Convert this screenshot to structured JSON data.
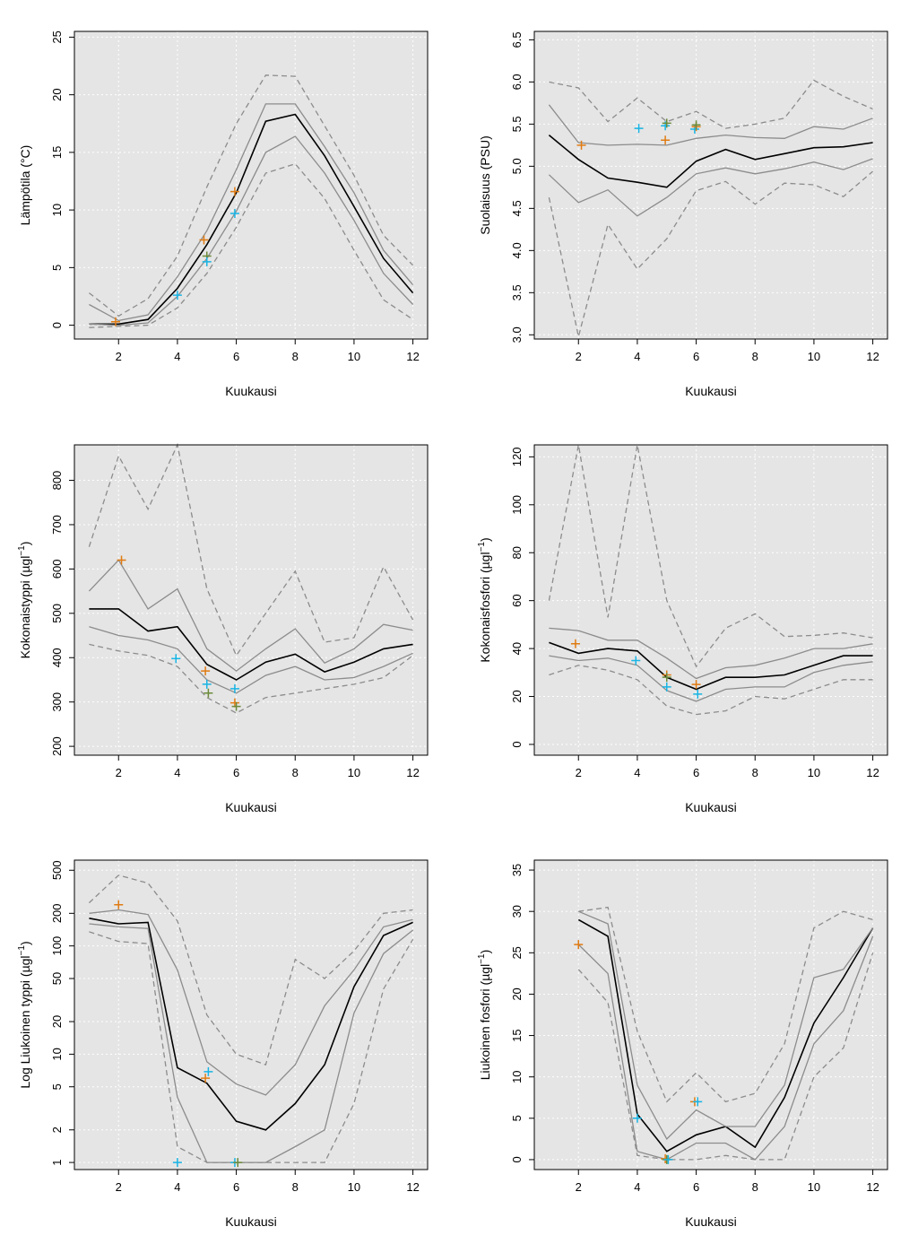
{
  "figure": {
    "xlabel": "Kuukausi",
    "colors": {
      "panel_background": "#e5e5e5",
      "grid": "#ffffff",
      "median_line": "#000000",
      "quartile_line": "#8c8c8c",
      "extreme_line": "#8c8c8c",
      "obs_orange": "#e07b12",
      "obs_cyan": "#18b4e4",
      "obs_green": "#6b8a3a"
    }
  },
  "chart_data": [
    {
      "type": "line",
      "ylabel": "Lämpötila (°C)",
      "ylabel_superscript": "",
      "xlim": [
        0.5,
        12.5
      ],
      "ylim": [
        -1.2,
        25.5
      ],
      "log_y": false,
      "xticks": [
        2,
        4,
        6,
        8,
        10,
        12
      ],
      "yticks": [
        0,
        5,
        10,
        15,
        20,
        25
      ],
      "x": [
        1,
        2,
        3,
        4,
        5,
        6,
        7,
        8,
        9,
        10,
        11,
        12
      ],
      "series": [
        {
          "role": "median",
          "values": [
            0.1,
            0.1,
            0.5,
            3.2,
            7,
            11.5,
            17.7,
            18.3,
            14.7,
            10.3,
            5.8,
            2.8
          ]
        },
        {
          "role": "quartile",
          "values": [
            1.8,
            0.4,
            0.9,
            4.2,
            8.2,
            13.5,
            19.2,
            19.2,
            15.5,
            11.5,
            6.5,
            3.5
          ]
        },
        {
          "role": "quartile",
          "values": [
            0.1,
            0.0,
            0.2,
            2.5,
            5.8,
            9.9,
            15.0,
            16.4,
            13.2,
            9.1,
            4.5,
            1.8
          ]
        },
        {
          "role": "extreme",
          "values": [
            2.8,
            0.8,
            2.3,
            6.0,
            12.0,
            17.5,
            21.7,
            21.6,
            17.3,
            13.0,
            7.8,
            5.2
          ]
        },
        {
          "role": "extreme",
          "values": [
            -0.2,
            -0.1,
            0.0,
            1.5,
            4.5,
            8.5,
            13.2,
            14.0,
            11.0,
            6.5,
            2.2,
            0.5
          ]
        }
      ],
      "points": [
        {
          "x": 1.9,
          "y": 0.3,
          "color": "obs_orange"
        },
        {
          "x": 4.9,
          "y": 7.4,
          "color": "obs_orange"
        },
        {
          "x": 5.0,
          "y": 6.0,
          "color": "obs_green"
        },
        {
          "x": 5.0,
          "y": 5.5,
          "color": "obs_cyan"
        },
        {
          "x": 5.95,
          "y": 11.6,
          "color": "obs_orange"
        },
        {
          "x": 5.95,
          "y": 9.7,
          "color": "obs_cyan"
        },
        {
          "x": 4.0,
          "y": 2.6,
          "color": "obs_cyan"
        }
      ]
    },
    {
      "type": "line",
      "ylabel": "Suolaisuus (PSU)",
      "ylabel_superscript": "",
      "xlim": [
        0.5,
        12.5
      ],
      "ylim": [
        2.95,
        6.6
      ],
      "log_y": false,
      "xticks": [
        2,
        4,
        6,
        8,
        10,
        12
      ],
      "yticks": [
        3.0,
        3.5,
        4.0,
        4.5,
        5.0,
        5.5,
        6.0,
        6.5
      ],
      "x": [
        1,
        2,
        3,
        4,
        5,
        6,
        7,
        8,
        9,
        10,
        11,
        12
      ],
      "series": [
        {
          "role": "median",
          "values": [
            5.37,
            5.08,
            4.86,
            4.81,
            4.75,
            5.06,
            5.2,
            5.08,
            5.15,
            5.22,
            5.23,
            5.28
          ]
        },
        {
          "role": "quartile",
          "values": [
            5.73,
            5.28,
            5.25,
            5.26,
            5.25,
            5.33,
            5.37,
            5.34,
            5.33,
            5.47,
            5.44,
            5.57
          ]
        },
        {
          "role": "quartile",
          "values": [
            4.9,
            4.57,
            4.72,
            4.41,
            4.63,
            4.91,
            4.98,
            4.91,
            4.97,
            5.05,
            4.96,
            5.09
          ]
        },
        {
          "role": "extreme",
          "values": [
            6.0,
            5.93,
            5.53,
            5.81,
            5.53,
            5.65,
            5.45,
            5.5,
            5.57,
            6.02,
            5.83,
            5.68
          ]
        },
        {
          "role": "extreme",
          "values": [
            4.63,
            2.98,
            4.31,
            3.78,
            4.14,
            4.71,
            4.82,
            4.55,
            4.8,
            4.78,
            4.64,
            4.94
          ]
        }
      ],
      "points": [
        {
          "x": 2.1,
          "y": 5.25,
          "color": "obs_orange"
        },
        {
          "x": 4.05,
          "y": 5.45,
          "color": "obs_cyan"
        },
        {
          "x": 4.95,
          "y": 5.31,
          "color": "obs_orange"
        },
        {
          "x": 4.95,
          "y": 5.48,
          "color": "obs_cyan"
        },
        {
          "x": 5.0,
          "y": 5.51,
          "color": "obs_green"
        },
        {
          "x": 5.95,
          "y": 5.44,
          "color": "obs_cyan"
        },
        {
          "x": 6.0,
          "y": 5.47,
          "color": "obs_orange"
        },
        {
          "x": 6.0,
          "y": 5.49,
          "color": "obs_green"
        }
      ]
    },
    {
      "type": "line",
      "ylabel": "Kokonaistyppi (µgl",
      "ylabel_superscript": "−1",
      "ylabel_suffix": ")",
      "xlim": [
        0.5,
        12.5
      ],
      "ylim": [
        180,
        880
      ],
      "log_y": false,
      "xticks": [
        2,
        4,
        6,
        8,
        10,
        12
      ],
      "yticks": [
        200,
        300,
        400,
        500,
        600,
        700,
        800
      ],
      "x": [
        1,
        2,
        3,
        4,
        5,
        6,
        7,
        8,
        9,
        10,
        11,
        12
      ],
      "series": [
        {
          "role": "median",
          "values": [
            510,
            510,
            460,
            470,
            385,
            350,
            390,
            408,
            368,
            390,
            420,
            430
          ]
        },
        {
          "role": "quartile",
          "values": [
            550,
            620,
            510,
            555,
            420,
            370,
            420,
            465,
            388,
            420,
            475,
            462
          ]
        },
        {
          "role": "quartile",
          "values": [
            470,
            450,
            440,
            420,
            350,
            320,
            360,
            380,
            350,
            355,
            380,
            410
          ]
        },
        {
          "role": "extreme",
          "values": [
            650,
            855,
            735,
            880,
            555,
            405,
            500,
            595,
            435,
            445,
            605,
            485
          ]
        },
        {
          "role": "extreme",
          "values": [
            430,
            415,
            405,
            380,
            310,
            275,
            310,
            320,
            330,
            340,
            355,
            405
          ]
        }
      ],
      "points": [
        {
          "x": 2.1,
          "y": 620,
          "color": "obs_orange"
        },
        {
          "x": 3.95,
          "y": 398,
          "color": "obs_cyan"
        },
        {
          "x": 4.95,
          "y": 370,
          "color": "obs_orange"
        },
        {
          "x": 5.0,
          "y": 340,
          "color": "obs_cyan"
        },
        {
          "x": 5.05,
          "y": 320,
          "color": "obs_green"
        },
        {
          "x": 5.95,
          "y": 330,
          "color": "obs_cyan"
        },
        {
          "x": 5.95,
          "y": 298,
          "color": "obs_orange"
        },
        {
          "x": 6.0,
          "y": 290,
          "color": "obs_green"
        }
      ]
    },
    {
      "type": "line",
      "ylabel": "Kokonaisfosfori (µgl",
      "ylabel_superscript": "−1",
      "ylabel_suffix": ")",
      "xlim": [
        0.5,
        12.5
      ],
      "ylim": [
        -4.5,
        125
      ],
      "log_y": false,
      "xticks": [
        2,
        4,
        6,
        8,
        10,
        12
      ],
      "yticks": [
        0,
        20,
        40,
        60,
        80,
        100,
        120
      ],
      "x": [
        1,
        2,
        3,
        4,
        5,
        6,
        7,
        8,
        9,
        10,
        11,
        12
      ],
      "series": [
        {
          "role": "median",
          "values": [
            42.5,
            38,
            40,
            39,
            28,
            23,
            28,
            28,
            29,
            33,
            37,
            37
          ]
        },
        {
          "role": "quartile",
          "values": [
            48.5,
            47.5,
            43.5,
            43.5,
            36,
            27.5,
            32,
            33,
            36,
            40,
            40,
            42
          ]
        },
        {
          "role": "quartile",
          "values": [
            37,
            35,
            36,
            33,
            22.5,
            18,
            23,
            24,
            24,
            30,
            33,
            34.5
          ]
        },
        {
          "role": "extreme",
          "values": [
            60,
            125,
            53,
            125,
            60,
            32.5,
            48.5,
            54.5,
            45,
            45.5,
            46.5,
            44.5
          ]
        },
        {
          "role": "extreme",
          "values": [
            29,
            33,
            31,
            27,
            16,
            12.5,
            14,
            20,
            19,
            23,
            27,
            27
          ]
        }
      ],
      "points": [
        {
          "x": 1.9,
          "y": 42,
          "color": "obs_orange"
        },
        {
          "x": 3.95,
          "y": 35,
          "color": "obs_cyan"
        },
        {
          "x": 5.0,
          "y": 29,
          "color": "obs_orange"
        },
        {
          "x": 5.0,
          "y": 28,
          "color": "obs_green"
        },
        {
          "x": 5.0,
          "y": 24,
          "color": "obs_cyan"
        },
        {
          "x": 6.0,
          "y": 25,
          "color": "obs_orange"
        },
        {
          "x": 6.05,
          "y": 21,
          "color": "obs_cyan"
        }
      ]
    },
    {
      "type": "line",
      "ylabel": "Log Liukoinen typpi (µgl",
      "ylabel_superscript": "−1",
      "ylabel_suffix": ")",
      "xlim": [
        0.5,
        12.5
      ],
      "ylim": [
        0.86,
        620
      ],
      "log_y": true,
      "xticks": [
        2,
        4,
        6,
        8,
        10,
        12
      ],
      "yticks": [
        1,
        2,
        5,
        10,
        20,
        50,
        100,
        200,
        500
      ],
      "x": [
        1,
        2,
        3,
        4,
        5,
        6,
        7,
        8,
        9,
        10,
        11,
        12
      ],
      "series": [
        {
          "role": "median",
          "values": [
            180,
            160,
            165,
            7.5,
            5.4,
            2.4,
            2.0,
            3.5,
            8,
            42,
            125,
            165
          ]
        },
        {
          "role": "quartile",
          "values": [
            200,
            215,
            195,
            60,
            8.5,
            5.3,
            4.2,
            8,
            28,
            60,
            150,
            175
          ]
        },
        {
          "role": "quartile",
          "values": [
            160,
            150,
            145,
            4,
            1.0,
            1.0,
            1.0,
            1.4,
            2,
            24,
            85,
            140
          ]
        },
        {
          "role": "extreme",
          "values": [
            250,
            450,
            380,
            170,
            23,
            10,
            8,
            75,
            50,
            90,
            200,
            215
          ]
        },
        {
          "role": "extreme",
          "values": [
            135,
            110,
            105,
            1.4,
            1.0,
            1.0,
            1.0,
            1.0,
            1.0,
            3.5,
            40,
            115
          ]
        }
      ],
      "points": [
        {
          "x": 2.0,
          "y": 240,
          "color": "obs_orange"
        },
        {
          "x": 4.0,
          "y": 1.0,
          "color": "obs_cyan"
        },
        {
          "x": 4.95,
          "y": 6.0,
          "color": "obs_orange"
        },
        {
          "x": 5.05,
          "y": 6.9,
          "color": "obs_cyan"
        },
        {
          "x": 5.95,
          "y": 1.0,
          "color": "obs_cyan"
        },
        {
          "x": 6.05,
          "y": 1.0,
          "color": "obs_green"
        }
      ]
    },
    {
      "type": "line",
      "ylabel": "Liukoinen fosfori (µgl",
      "ylabel_superscript": "−1",
      "ylabel_suffix": ")",
      "xlim": [
        0.5,
        12.5
      ],
      "ylim": [
        -1.2,
        36.2
      ],
      "log_y": false,
      "xticks": [
        2,
        4,
        6,
        8,
        10,
        12
      ],
      "yticks": [
        0,
        5,
        10,
        15,
        20,
        25,
        30,
        35
      ],
      "x": [
        1,
        2,
        3,
        4,
        5,
        6,
        7,
        8,
        9,
        10,
        11,
        12
      ],
      "series": [
        {
          "role": "median",
          "values": [
            null,
            29,
            27,
            5.5,
            1.0,
            3.0,
            4.0,
            1.5,
            7.5,
            16.5,
            22,
            28
          ]
        },
        {
          "role": "quartile",
          "values": [
            null,
            30,
            28.5,
            9,
            2.5,
            6,
            4,
            4,
            9,
            22,
            23,
            28
          ]
        },
        {
          "role": "quartile",
          "values": [
            null,
            26,
            22.5,
            1.0,
            0.0,
            2.0,
            2.0,
            0.0,
            4.0,
            14,
            18,
            27
          ]
        },
        {
          "role": "extreme",
          "values": [
            null,
            30,
            30.5,
            15.5,
            7,
            10.5,
            7,
            8,
            14,
            28,
            30,
            29
          ]
        },
        {
          "role": "extreme",
          "values": [
            null,
            23,
            19,
            0.5,
            0.0,
            0.0,
            0.5,
            0.0,
            0.0,
            10,
            13.5,
            25
          ]
        }
      ],
      "points": [
        {
          "x": 2.0,
          "y": 26,
          "color": "obs_orange"
        },
        {
          "x": 4.0,
          "y": 5,
          "color": "obs_cyan"
        },
        {
          "x": 4.95,
          "y": 0.1,
          "color": "obs_orange"
        },
        {
          "x": 5.0,
          "y": 0.0,
          "color": "obs_green"
        },
        {
          "x": 5.05,
          "y": 0.0,
          "color": "obs_cyan"
        },
        {
          "x": 5.95,
          "y": 7,
          "color": "obs_orange"
        },
        {
          "x": 6.05,
          "y": 7,
          "color": "obs_cyan"
        }
      ]
    }
  ]
}
